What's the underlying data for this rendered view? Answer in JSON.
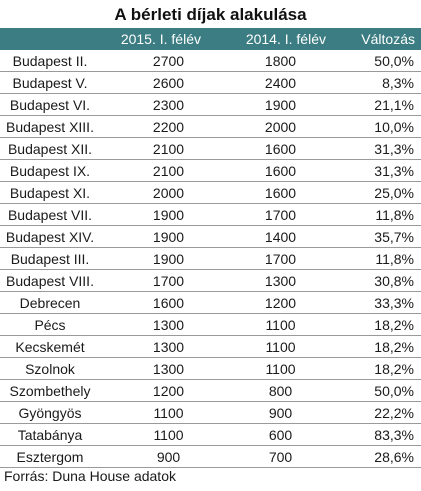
{
  "title": "A bérleti díjak alakulása",
  "columns": [
    "",
    "2015. I. félév",
    "2014. I. félév",
    "Változás"
  ],
  "header_color": "#3b7d82",
  "rows": [
    {
      "city": "Budapest II.",
      "v2015": "2700",
      "v2014": "1800",
      "change": "50,0%"
    },
    {
      "city": "Budapest V.",
      "v2015": "2600",
      "v2014": "2400",
      "change": "8,3%"
    },
    {
      "city": "Budapest VI.",
      "v2015": "2300",
      "v2014": "1900",
      "change": "21,1%"
    },
    {
      "city": "Budapest XIII.",
      "v2015": "2200",
      "v2014": "2000",
      "change": "10,0%"
    },
    {
      "city": "Budapest XII.",
      "v2015": "2100",
      "v2014": "1600",
      "change": "31,3%"
    },
    {
      "city": "Budapest IX.",
      "v2015": "2100",
      "v2014": "1600",
      "change": "31,3%"
    },
    {
      "city": "Budapest XI.",
      "v2015": "2000",
      "v2014": "1600",
      "change": "25,0%"
    },
    {
      "city": "Budapest VII.",
      "v2015": "1900",
      "v2014": "1700",
      "change": "11,8%"
    },
    {
      "city": "Budapest XIV.",
      "v2015": "1900",
      "v2014": "1400",
      "change": "35,7%"
    },
    {
      "city": "Budapest III.",
      "v2015": "1900",
      "v2014": "1700",
      "change": "11,8%"
    },
    {
      "city": "Budapest VIII.",
      "v2015": "1700",
      "v2014": "1300",
      "change": "30,8%"
    },
    {
      "city": "Debrecen",
      "v2015": "1600",
      "v2014": "1200",
      "change": "33,3%"
    },
    {
      "city": "Pécs",
      "v2015": "1300",
      "v2014": "1100",
      "change": "18,2%"
    },
    {
      "city": "Kecskemét",
      "v2015": "1300",
      "v2014": "1100",
      "change": "18,2%"
    },
    {
      "city": "Szolnok",
      "v2015": "1300",
      "v2014": "1100",
      "change": "18,2%"
    },
    {
      "city": "Szombethely",
      "v2015": "1200",
      "v2014": "800",
      "change": "50,0%"
    },
    {
      "city": "Gyöngyös",
      "v2015": "1100",
      "v2014": "900",
      "change": "22,2%"
    },
    {
      "city": "Tatabánya",
      "v2015": "1100",
      "v2014": "600",
      "change": "83,3%"
    },
    {
      "city": "Esztergom",
      "v2015": "900",
      "v2014": "700",
      "change": "28,6%"
    }
  ],
  "source": "Forrás: Duna House adatok"
}
